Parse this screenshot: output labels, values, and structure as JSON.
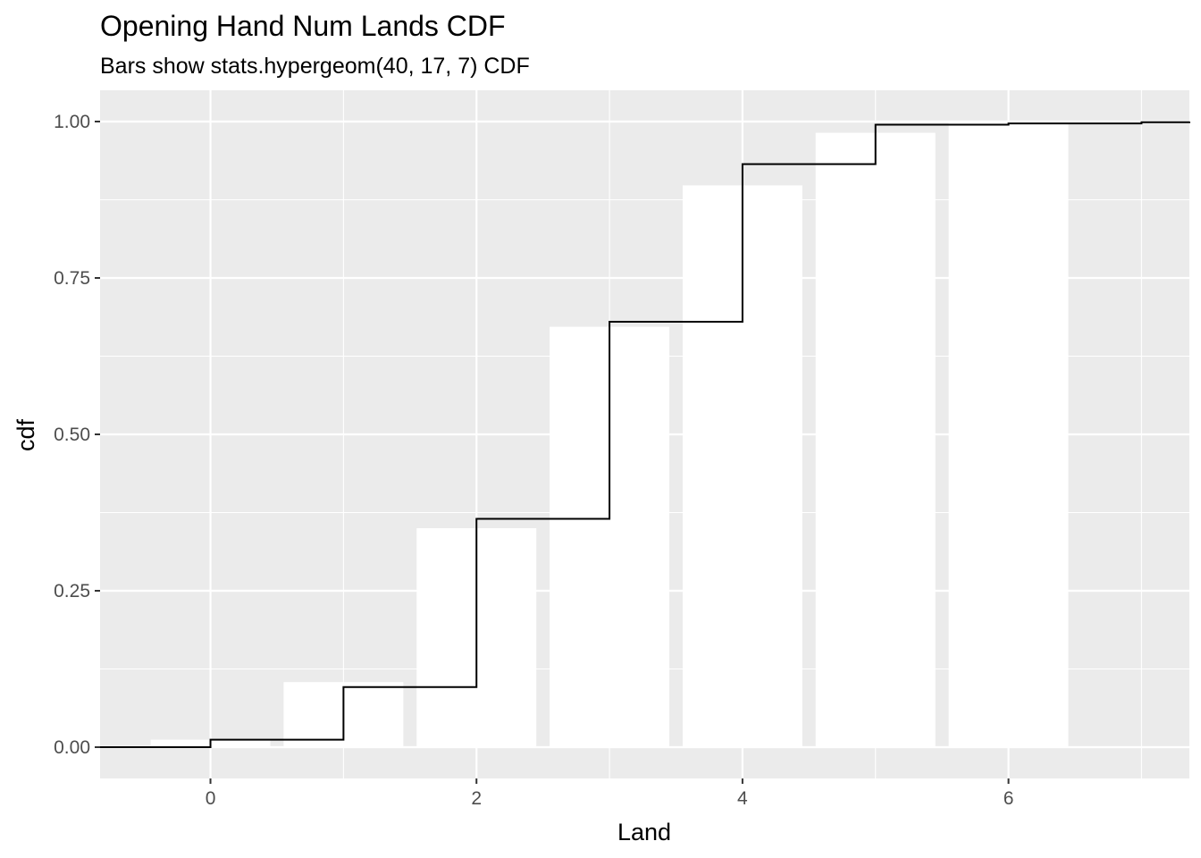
{
  "chart_data": {
    "type": "bar",
    "title": "Opening Hand Num Lands CDF",
    "subtitle": "Bars show stats.hypergeom(40, 17, 7) CDF",
    "xlabel": "Land",
    "ylabel": "cdf",
    "xlim": [
      -0.83,
      7.36
    ],
    "ylim": [
      -0.05,
      1.05
    ],
    "x_ticks": [
      0,
      2,
      4,
      6
    ],
    "x_tick_labels": [
      "0",
      "2",
      "4",
      "6"
    ],
    "y_ticks": [
      0,
      0.25,
      0.5,
      0.75,
      1.0
    ],
    "y_tick_labels": [
      "0.00",
      "0.25",
      "0.50",
      "0.75",
      "1.00"
    ],
    "grid": true,
    "bar_width": 0.9,
    "bars": {
      "x": [
        0,
        1,
        2,
        3,
        4,
        5,
        6
      ],
      "values": [
        0.012,
        0.104,
        0.35,
        0.672,
        0.898,
        0.982,
        0.998
      ]
    },
    "step_line": {
      "x": [
        -0.83,
        0,
        1,
        2,
        3,
        4,
        5,
        6,
        7,
        7.36
      ],
      "values": [
        0.0,
        0.012,
        0.096,
        0.365,
        0.68,
        0.932,
        0.995,
        0.997,
        0.999,
        1.0
      ]
    },
    "colors": {
      "panel_background": "#ebebeb",
      "grid_major": "#ffffff",
      "bar_fill": "#ffffff",
      "step_line": "#000000"
    }
  }
}
